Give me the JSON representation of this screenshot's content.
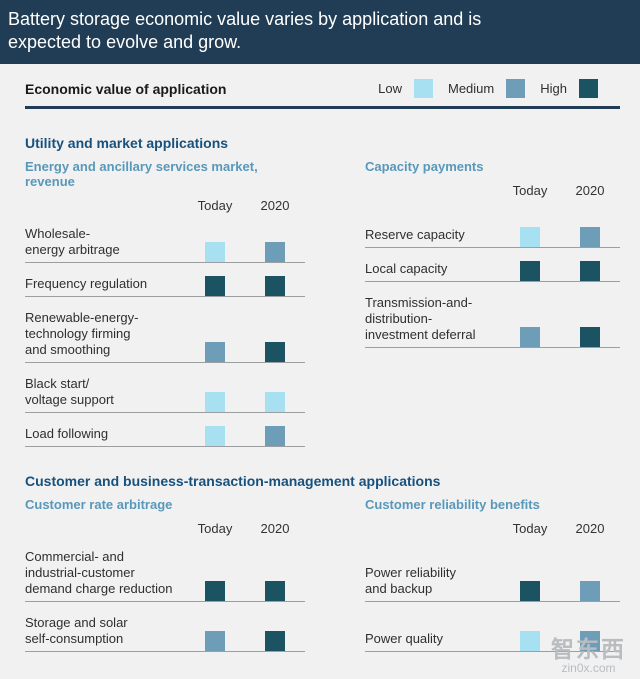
{
  "header": {
    "title": "Battery storage economic value varies by application and is\nexpected to evolve and grow."
  },
  "legend": {
    "label": "Economic value of application",
    "items": [
      {
        "label": "Low",
        "level": "low"
      },
      {
        "label": "Medium",
        "level": "medium"
      },
      {
        "label": "High",
        "level": "high"
      }
    ]
  },
  "columns": {
    "today": "Today",
    "future": "2020"
  },
  "sections": [
    {
      "title": "Utility and market applications",
      "panels": [
        {
          "subtitle": "Energy and ancillary services market, revenue",
          "rows": [
            {
              "label": "Wholesale-\nenergy arbitrage",
              "today": "low",
              "future": "medium"
            },
            {
              "label": "Frequency regulation",
              "today": "high",
              "future": "high"
            },
            {
              "label": "Renewable-energy-\ntechnology firming\nand smoothing",
              "today": "medium",
              "future": "high"
            },
            {
              "label": "Black start/\nvoltage support",
              "today": "low",
              "future": "low"
            },
            {
              "label": "Load following",
              "today": "low",
              "future": "medium"
            }
          ]
        },
        {
          "subtitle": "Capacity payments",
          "rows": [
            {
              "label": "Reserve capacity",
              "today": "low",
              "future": "medium"
            },
            {
              "label": "Local capacity",
              "today": "high",
              "future": "high"
            },
            {
              "label": "Transmission-and-\ndistribution-\ninvestment deferral",
              "today": "medium",
              "future": "high"
            }
          ]
        }
      ]
    },
    {
      "title": "Customer and business-transaction-management applications",
      "panels": [
        {
          "subtitle": "Customer rate arbitrage",
          "rows": [
            {
              "label": "Commercial- and\nindustrial-customer\ndemand charge reduction",
              "today": "high",
              "future": "high"
            },
            {
              "label": "Storage and solar\nself-consumption",
              "today": "medium",
              "future": "high"
            }
          ]
        },
        {
          "subtitle": "Customer reliability benefits",
          "rows": [
            {
              "label": "Power reliability\nand backup",
              "today": "high",
              "future": "medium"
            },
            {
              "label": "Power quality",
              "today": "low",
              "future": "medium"
            }
          ]
        }
      ]
    }
  ],
  "watermark": {
    "line1": "智东西",
    "line2": "zin0x.com"
  },
  "colors": {
    "low": "#a7e1f1",
    "medium": "#6e9db7",
    "high": "#1c5362",
    "header_bg": "#213d55",
    "section_title": "#17517c",
    "panel_subtitle": "#5898ba",
    "rule": "#213d55",
    "row_line": "#9c9ea0",
    "page_bg": "#f1f1f2"
  },
  "chart_data": {
    "type": "heatmap",
    "title": "Battery storage economic value varies by application and is expected to evolve and grow.",
    "legend_label": "Economic value of application",
    "value_scale": [
      "Low",
      "Medium",
      "High"
    ],
    "columns": [
      "Today",
      "2020"
    ],
    "groups": [
      {
        "group": "Utility and market applications",
        "subgroup": "Energy and ancillary services market, revenue",
        "rows": [
          {
            "application": "Wholesale-energy arbitrage",
            "today": "Low",
            "y2020": "Medium"
          },
          {
            "application": "Frequency regulation",
            "today": "High",
            "y2020": "High"
          },
          {
            "application": "Renewable-energy-technology firming and smoothing",
            "today": "Medium",
            "y2020": "High"
          },
          {
            "application": "Black start/voltage support",
            "today": "Low",
            "y2020": "Low"
          },
          {
            "application": "Load following",
            "today": "Low",
            "y2020": "Medium"
          }
        ]
      },
      {
        "group": "Utility and market applications",
        "subgroup": "Capacity payments",
        "rows": [
          {
            "application": "Reserve capacity",
            "today": "Low",
            "y2020": "Medium"
          },
          {
            "application": "Local capacity",
            "today": "High",
            "y2020": "High"
          },
          {
            "application": "Transmission-and-distribution-investment deferral",
            "today": "Medium",
            "y2020": "High"
          }
        ]
      },
      {
        "group": "Customer and business-transaction-management applications",
        "subgroup": "Customer rate arbitrage",
        "rows": [
          {
            "application": "Commercial- and industrial-customer demand charge reduction",
            "today": "High",
            "y2020": "High"
          },
          {
            "application": "Storage and solar self-consumption",
            "today": "Medium",
            "y2020": "High"
          }
        ]
      },
      {
        "group": "Customer and business-transaction-management applications",
        "subgroup": "Customer reliability benefits",
        "rows": [
          {
            "application": "Power reliability and backup",
            "today": "High",
            "y2020": "Medium"
          },
          {
            "application": "Power quality",
            "today": "Low",
            "y2020": "Medium"
          }
        ]
      }
    ]
  }
}
